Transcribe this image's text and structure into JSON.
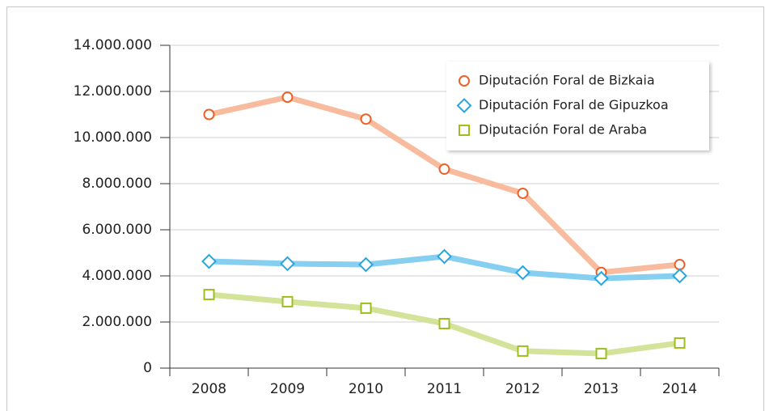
{
  "chart_data": {
    "type": "line",
    "categories": [
      "2008",
      "2009",
      "2010",
      "2011",
      "2012",
      "2013",
      "2014"
    ],
    "series": [
      {
        "name": "Diputación Foral de Bizkaia",
        "color": "#e8622a",
        "line_color": "#f8bb9d",
        "marker": "circle",
        "values": [
          11000000,
          11750000,
          10800000,
          8630000,
          7580000,
          4150000,
          4490000
        ]
      },
      {
        "name": "Diputación Foral de Gipuzkoa",
        "color": "#2aa6dc",
        "line_color": "#86cff0",
        "marker": "diamond",
        "values": [
          4630000,
          4530000,
          4490000,
          4840000,
          4140000,
          3890000,
          4000000
        ]
      },
      {
        "name": "Diputación Foral de Araba",
        "color": "#9cbf1e",
        "line_color": "#d3e39a",
        "marker": "square",
        "values": [
          3190000,
          2880000,
          2600000,
          1930000,
          740000,
          630000,
          1090000
        ]
      }
    ],
    "ylim": [
      0,
      14000000
    ],
    "yticks": [
      0,
      {
        "value": 2000000,
        "label": "2.000.000"
      },
      {
        "value": 4000000,
        "label": "4.000.000"
      },
      {
        "value": 6000000,
        "label": "6.000.000"
      },
      {
        "value": 8000000,
        "label": "8.000.000"
      },
      {
        "value": 10000000,
        "label": "10.000.000"
      },
      {
        "value": 12000000,
        "label": "12.000.000"
      },
      {
        "value": 14000000,
        "label": "14.000.000"
      }
    ],
    "grid": true,
    "legend": "upper right"
  }
}
